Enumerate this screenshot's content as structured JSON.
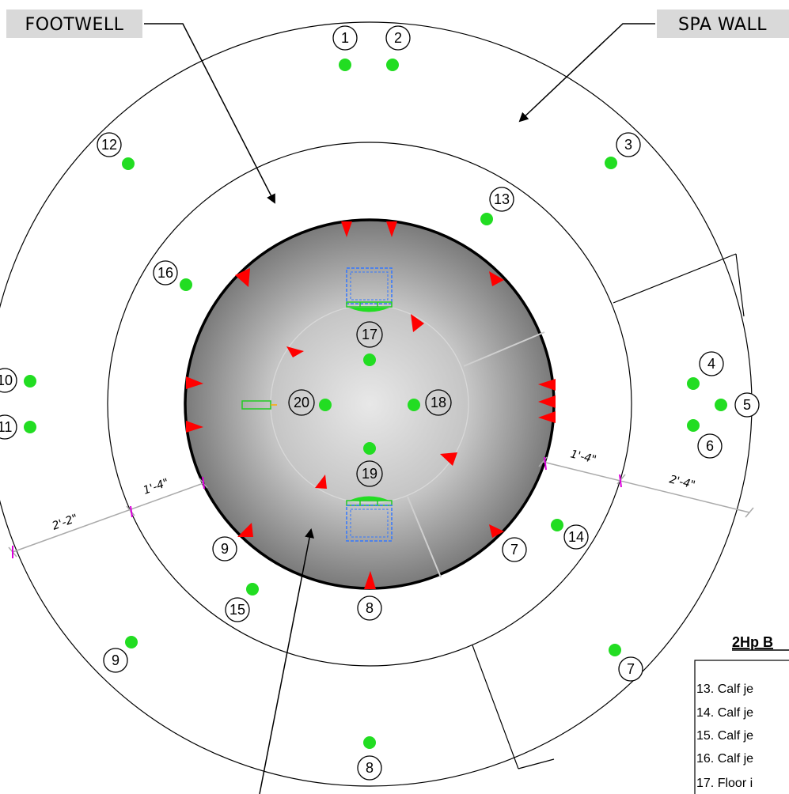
{
  "callouts": {
    "footwell": "FOOTWELL",
    "spa_wall": "SPA WALL"
  },
  "jet_numbers": {
    "n1": "1",
    "n2": "2",
    "n3": "3",
    "n4": "4",
    "n5": "5",
    "n6": "6",
    "n7a": "7",
    "n7b": "7",
    "n8a": "8",
    "n8b": "8",
    "n9a": "9",
    "n9b": "9",
    "n10": "10",
    "n11": "11",
    "n12": "12",
    "n13": "13",
    "n14": "14",
    "n15": "15",
    "n16": "16",
    "n17": "17",
    "n18": "18",
    "n19": "19",
    "n20": "20"
  },
  "dimensions": {
    "d_left_outer": "2'-2\"",
    "d_left_inner": "1'-4\"",
    "d_right_inner": "1'-4\"",
    "d_right_outer": "2'-4\""
  },
  "legend": {
    "title": "2Hp B",
    "items": [
      "13. Calf je",
      "14. Calf je",
      "15. Calf je",
      "16. Calf je",
      "17. Floor i"
    ]
  },
  "colors": {
    "jet": "#22dd22",
    "arrow": "#ff0000",
    "drain": "#3377ff",
    "dim_tick": "#dd00dd",
    "callout_box": "#d9d9d9"
  }
}
